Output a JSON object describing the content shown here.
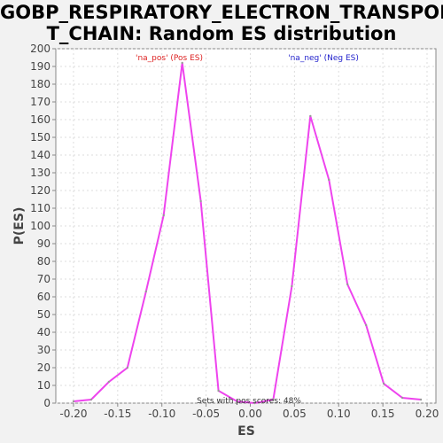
{
  "title_line1": "GOBP_RESPIRATORY_ELECTRON_TRANSPOR",
  "title_line2": "T_CHAIN: Random ES distribution",
  "chart_data": {
    "type": "line",
    "title": "GOBP_RESPIRATORY_ELECTRON_TRANSPORT_CHAIN: Random ES distribution",
    "xlabel": "ES",
    "ylabel": "P(ES)",
    "xlim": [
      -0.22,
      0.21
    ],
    "ylim": [
      0,
      200
    ],
    "x_ticks": [
      -0.2,
      -0.15,
      -0.1,
      -0.05,
      0.0,
      0.05,
      0.1,
      0.15,
      0.2
    ],
    "x_tick_labels": [
      "-0.20",
      "-0.15",
      "-0.10",
      "-0.05",
      "0.00",
      "0.05",
      "0.10",
      "0.15",
      "0.20"
    ],
    "y_ticks": [
      0,
      10,
      20,
      30,
      40,
      50,
      60,
      70,
      80,
      90,
      100,
      110,
      120,
      130,
      140,
      150,
      160,
      170,
      180,
      190,
      200
    ],
    "grid": true,
    "line_color": "#ee44ee",
    "series": [
      {
        "x": [
          -0.2,
          -0.18,
          -0.16,
          -0.139,
          -0.118,
          -0.098,
          -0.077,
          -0.056,
          -0.036,
          -0.015,
          0.005,
          0.026,
          0.047,
          0.068,
          0.089,
          0.11,
          0.131,
          0.151,
          0.172,
          0.193
        ],
        "y": [
          1,
          2,
          12,
          20,
          63,
          106,
          192,
          114,
          7,
          1,
          0,
          2,
          66,
          162,
          126,
          67,
          44,
          11,
          3,
          2
        ]
      }
    ],
    "annotations": [
      {
        "text": "'na_pos' (Pos ES)",
        "color": "#dd2222"
      },
      {
        "text": "'na_neg' (Neg ES)",
        "color": "#2222cc"
      },
      {
        "text": "Sets with pos scores: 48%",
        "color": "#333333"
      }
    ]
  }
}
